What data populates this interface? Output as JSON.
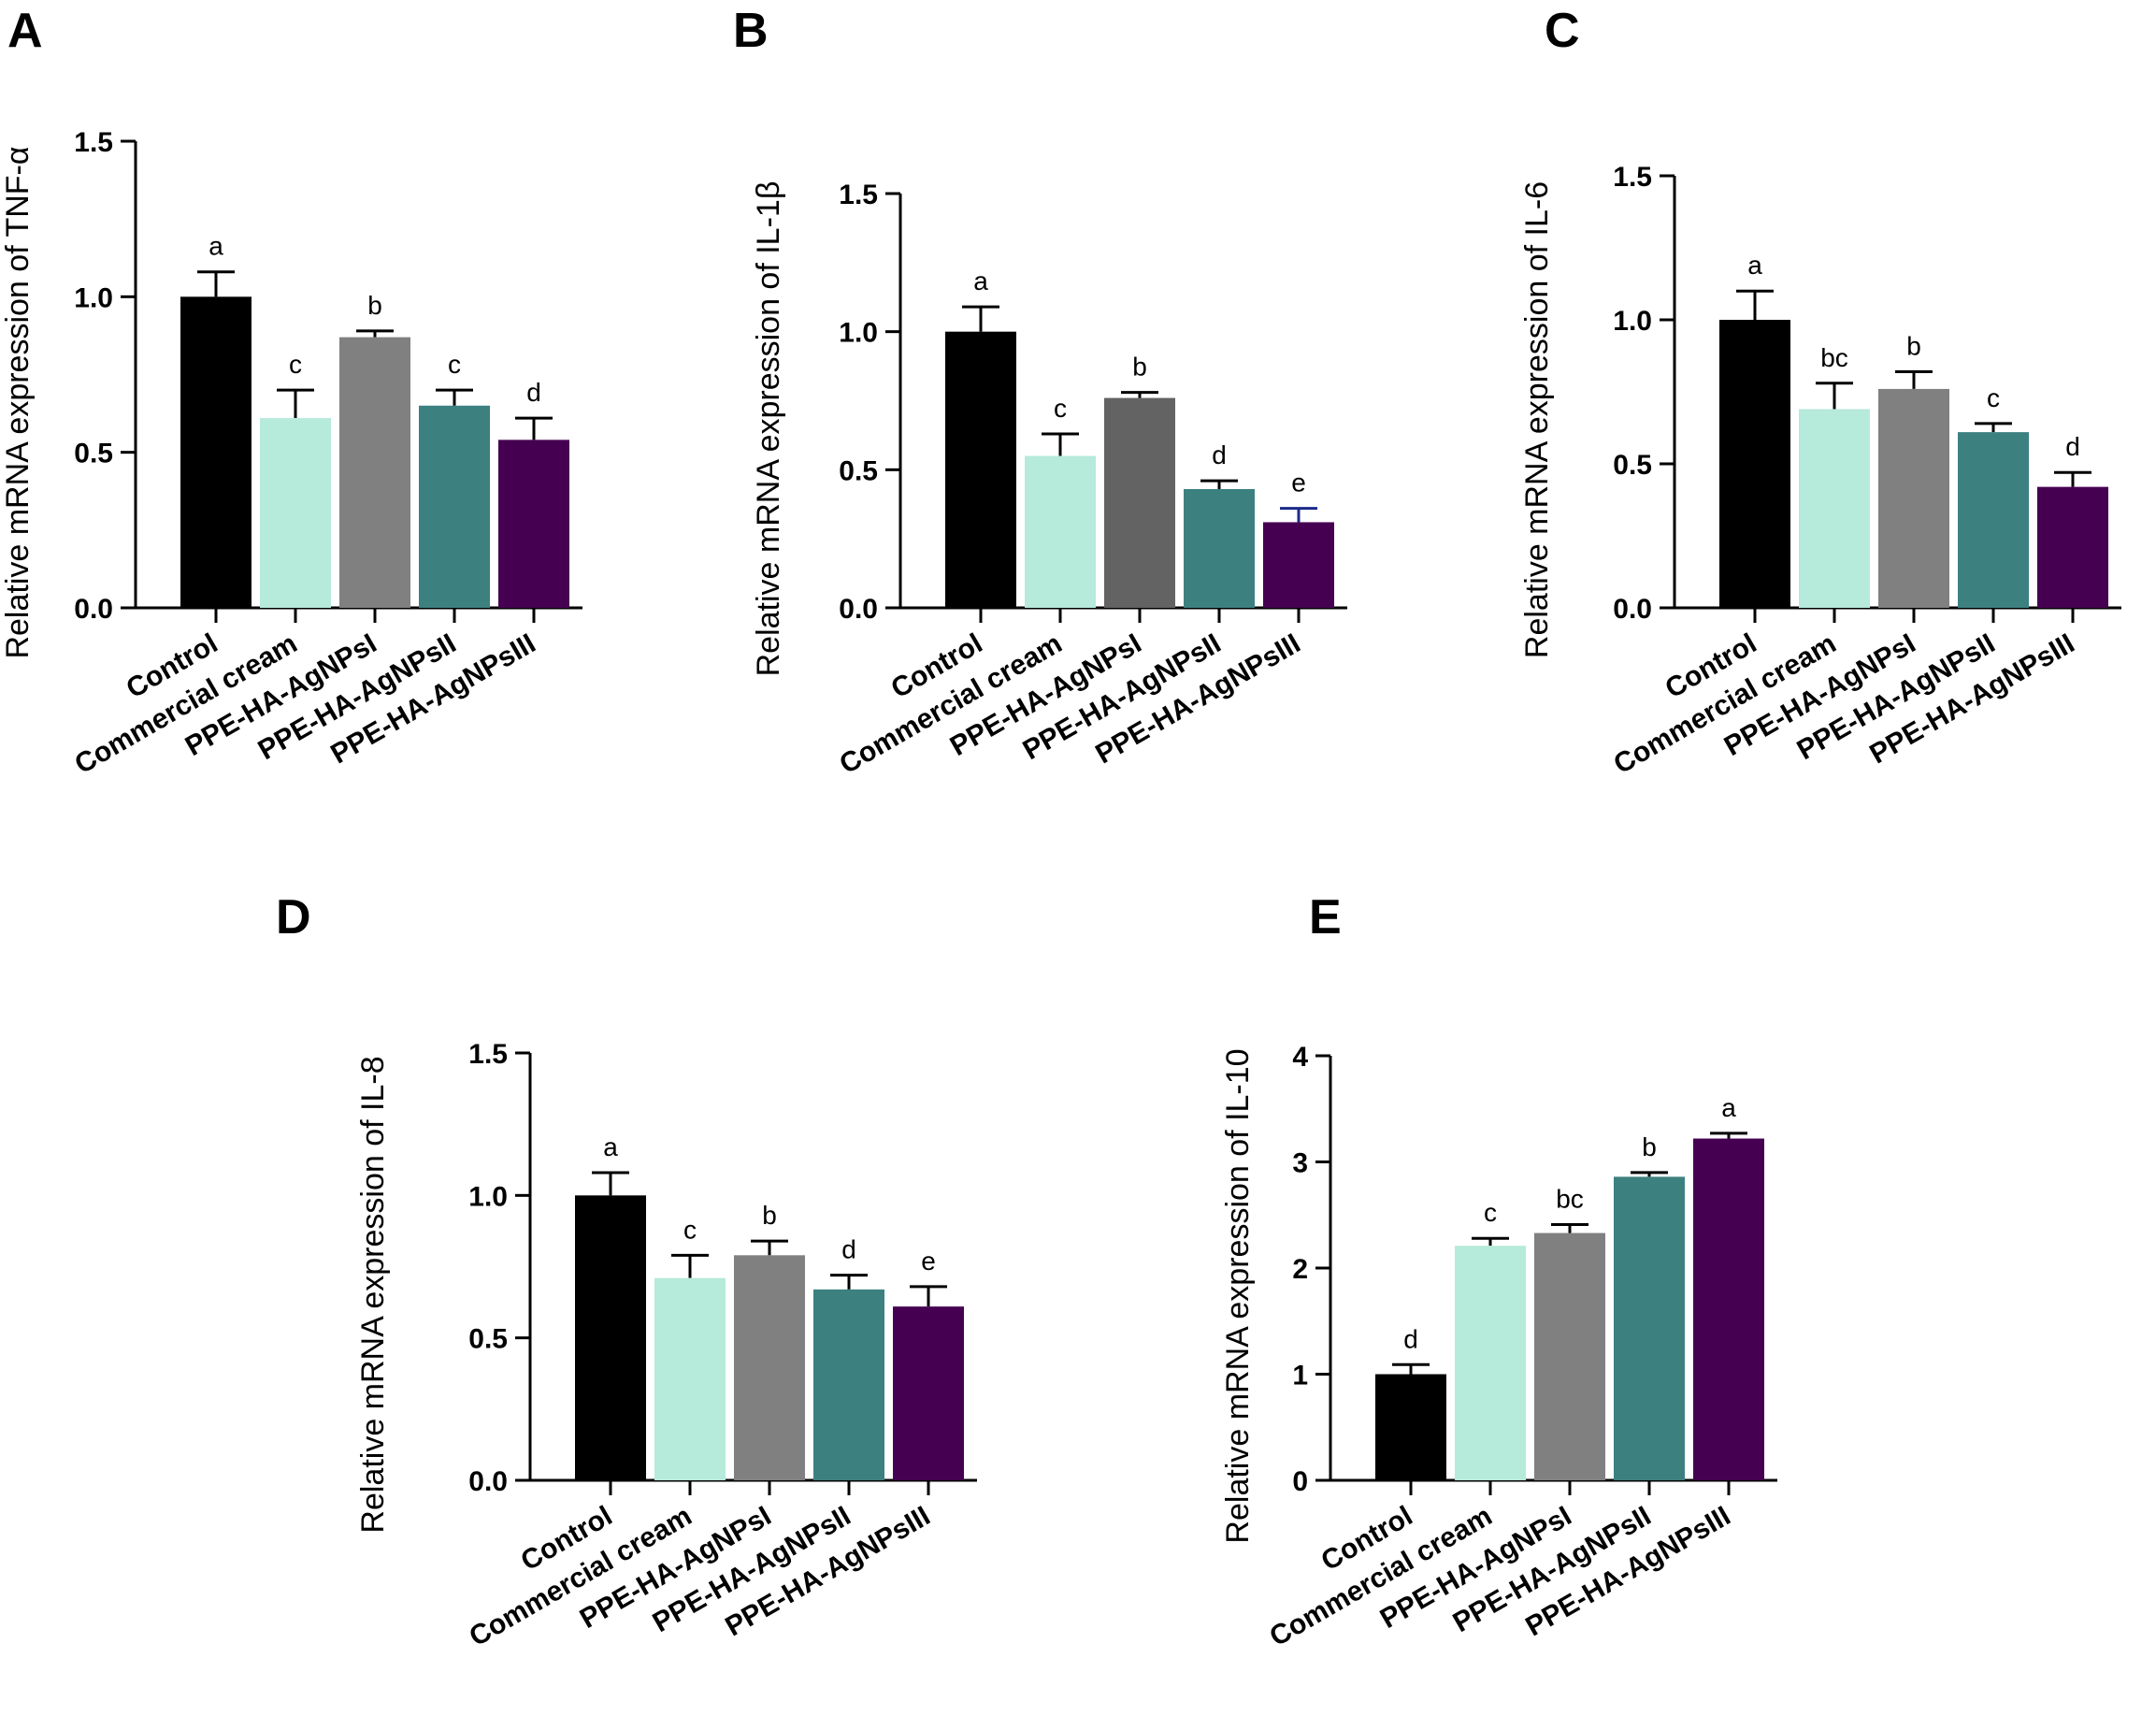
{
  "figure": {
    "categories": [
      "Control",
      "Commercial cream",
      "PPE-HA-AgNPsI",
      "PPE-HA-AgNPsII",
      "PPE-HA-AgNPsIII"
    ]
  },
  "chart_data": [
    {
      "type": "bar",
      "panel": "A",
      "ylabel": "Relative mRNA expression of TNF-α",
      "categories": [
        "Control",
        "Commercial cream",
        "PPE-HA-AgNPsI",
        "PPE-HA-AgNPsII",
        "PPE-HA-AgNPsIII"
      ],
      "values": [
        1.0,
        0.61,
        0.87,
        0.65,
        0.54
      ],
      "errors": [
        0.08,
        0.09,
        0.02,
        0.05,
        0.07
      ],
      "letters": [
        "a",
        "c",
        "b",
        "c",
        "d"
      ],
      "colors": [
        "#000000",
        "#b6eadb",
        "#808080",
        "#3d8080",
        "#460051"
      ],
      "ylim": [
        0,
        1.5
      ],
      "yticks": [
        0.0,
        0.5,
        1.0,
        1.5
      ],
      "ytick_labels": [
        "0.0",
        "0.5",
        "1.0",
        "1.5"
      ]
    },
    {
      "type": "bar",
      "panel": "B",
      "ylabel": "Relative mRNA expression of IL-1β",
      "categories": [
        "Control",
        "Commercial cream",
        "PPE-HA-AgNPsI",
        "PPE-HA-AgNPsII",
        "PPE-HA-AgNPsIII"
      ],
      "values": [
        1.0,
        0.55,
        0.76,
        0.43,
        0.31
      ],
      "errors": [
        0.09,
        0.08,
        0.02,
        0.03,
        0.05
      ],
      "letters": [
        "a",
        "c",
        "b",
        "d",
        "e"
      ],
      "colors": [
        "#000000",
        "#b6eadb",
        "#636363",
        "#3d8080",
        "#460051"
      ],
      "ylim": [
        0,
        1.5
      ],
      "yticks": [
        0.0,
        0.5,
        1.0,
        1.5
      ],
      "ytick_labels": [
        "0.0",
        "0.5",
        "1.0",
        "1.5"
      ]
    },
    {
      "type": "bar",
      "panel": "C",
      "ylabel": "Relative mRNA expression of IL-6",
      "categories": [
        "Control",
        "Commercial cream",
        "PPE-HA-AgNPsI",
        "PPE-HA-AgNPsII",
        "PPE-HA-AgNPsIII"
      ],
      "values": [
        1.0,
        0.69,
        0.76,
        0.61,
        0.42
      ],
      "errors": [
        0.1,
        0.09,
        0.06,
        0.03,
        0.05
      ],
      "letters": [
        "a",
        "bc",
        "b",
        "c",
        "d"
      ],
      "colors": [
        "#000000",
        "#b6eadb",
        "#808080",
        "#3d8080",
        "#460051"
      ],
      "ylim": [
        0,
        1.5
      ],
      "yticks": [
        0.0,
        0.5,
        1.0,
        1.5
      ],
      "ytick_labels": [
        "0.0",
        "0.5",
        "1.0",
        "1.5"
      ]
    },
    {
      "type": "bar",
      "panel": "D",
      "ylabel": "Relative mRNA expression of IL-8",
      "categories": [
        "Control",
        "Commercial cream",
        "PPE-HA-AgNPsI",
        "PPE-HA-AgNPsII",
        "PPE-HA-AgNPsIII"
      ],
      "values": [
        1.0,
        0.71,
        0.79,
        0.67,
        0.61
      ],
      "errors": [
        0.08,
        0.08,
        0.05,
        0.05,
        0.07
      ],
      "letters": [
        "a",
        "c",
        "b",
        "d",
        "e"
      ],
      "colors": [
        "#000000",
        "#b6eadb",
        "#808080",
        "#3d8080",
        "#460051"
      ],
      "ylim": [
        0,
        1.5
      ],
      "yticks": [
        0.0,
        0.5,
        1.0,
        1.5
      ],
      "ytick_labels": [
        "0.0",
        "0.5",
        "1.0",
        "1.5"
      ]
    },
    {
      "type": "bar",
      "panel": "E",
      "ylabel": "Relative mRNA expression of IL-10",
      "categories": [
        "Control",
        "Commercial cream",
        "PPE-HA-AgNPsI",
        "PPE-HA-AgNPsII",
        "PPE-HA-AgNPsIII"
      ],
      "values": [
        1.0,
        2.21,
        2.33,
        2.86,
        3.22
      ],
      "errors": [
        0.09,
        0.07,
        0.08,
        0.04,
        0.05
      ],
      "letters": [
        "d",
        "c",
        "bc",
        "b",
        "a"
      ],
      "colors": [
        "#000000",
        "#b6eadb",
        "#808080",
        "#3d8080",
        "#460051"
      ],
      "ylim": [
        0,
        4
      ],
      "yticks": [
        0,
        1,
        2,
        3,
        4
      ],
      "ytick_labels": [
        "0",
        "1",
        "2",
        "3",
        "4"
      ]
    }
  ]
}
